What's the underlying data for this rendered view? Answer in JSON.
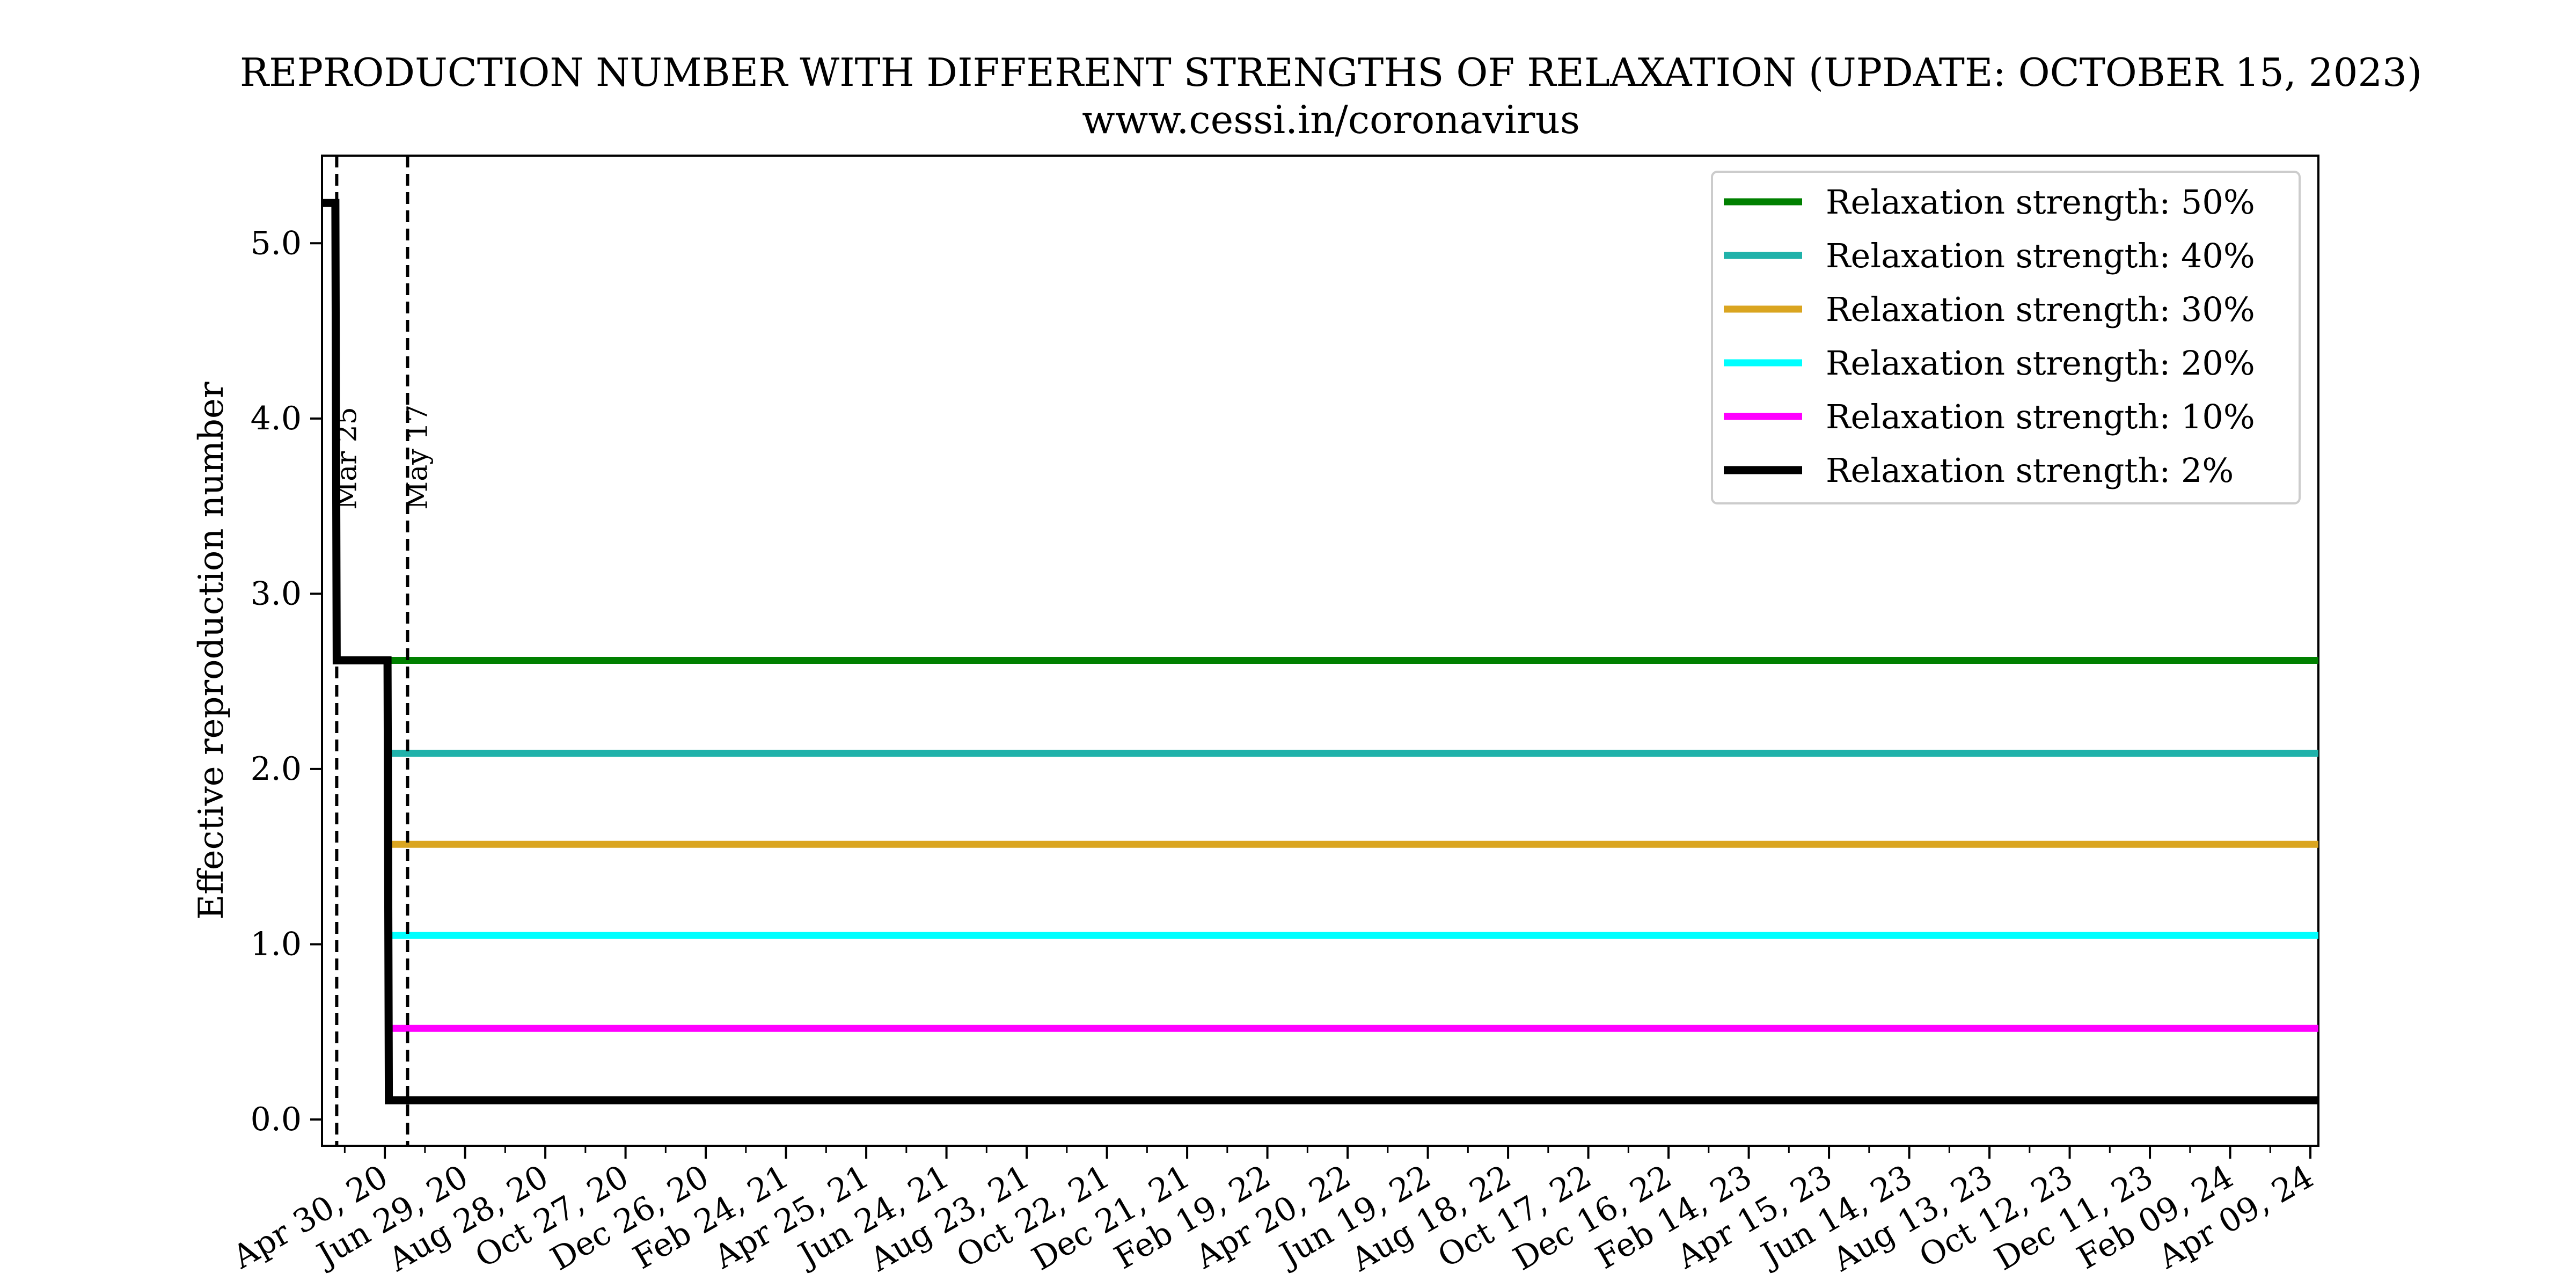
{
  "chart_data": {
    "type": "line",
    "title": "REPRODUCTION NUMBER WITH DIFFERENT STRENGTHS OF RELAXATION (UPDATE: OCTOBER 15, 2023)",
    "subtitle": "www.cessi.in/coronavirus",
    "xlabel": "",
    "ylabel": "Effective reproduction number",
    "ylim": [
      -0.15,
      5.5
    ],
    "xlim": [
      "2020-03-14",
      "2024-04-15"
    ],
    "yticks": [
      0.0,
      1.0,
      2.0,
      3.0,
      4.0,
      5.0
    ],
    "ytick_labels": [
      "0.0",
      "1.0",
      "2.0",
      "3.0",
      "4.0",
      "5.0"
    ],
    "xticks": [
      "2020-04-30",
      "2020-06-29",
      "2020-08-28",
      "2020-10-27",
      "2020-12-26",
      "2021-02-24",
      "2021-04-25",
      "2021-06-24",
      "2021-08-23",
      "2021-10-22",
      "2021-12-21",
      "2022-02-19",
      "2022-04-20",
      "2022-06-19",
      "2022-08-18",
      "2022-10-17",
      "2022-12-16",
      "2023-02-14",
      "2023-04-15",
      "2023-06-14",
      "2023-08-13",
      "2023-10-12",
      "2023-12-11",
      "2024-02-09",
      "2024-04-09"
    ],
    "xtick_labels": [
      "Apr 30, 20",
      "Jun 29, 20",
      "Aug 28, 20",
      "Oct 27, 20",
      "Dec 26, 20",
      "Feb 24, 21",
      "Apr 25, 21",
      "Jun 24, 21",
      "Aug 23, 21",
      "Oct 22, 21",
      "Dec 21, 21",
      "Feb 19, 22",
      "Apr 20, 22",
      "Jun 19, 22",
      "Aug 18, 22",
      "Oct 17, 22",
      "Dec 16, 22",
      "Feb 14, 23",
      "Apr 15, 23",
      "Jun 14, 23",
      "Aug 13, 23",
      "Oct 12, 23",
      "Dec 11, 23",
      "Feb 09, 24",
      "Apr 09, 24"
    ],
    "grid": false,
    "legend_position": "top-right",
    "vlines": [
      {
        "x": "2020-03-25",
        "label": "Mar 25"
      },
      {
        "x": "2020-05-17",
        "label": "May 17"
      }
    ],
    "series": [
      {
        "name": "Relaxation strength: 50%",
        "color": "#008000",
        "x": [
          "2020-05-04",
          "2024-04-15"
        ],
        "y": [
          2.62,
          2.62
        ]
      },
      {
        "name": "Relaxation strength: 40%",
        "color": "#20B2AA",
        "x": [
          "2020-05-04",
          "2024-04-15"
        ],
        "y": [
          2.09,
          2.09
        ]
      },
      {
        "name": "Relaxation strength: 30%",
        "color": "#DAA520",
        "x": [
          "2020-05-04",
          "2024-04-15"
        ],
        "y": [
          1.57,
          1.57
        ]
      },
      {
        "name": "Relaxation strength: 20%",
        "color": "#00FFFF",
        "x": [
          "2020-05-04",
          "2024-04-15"
        ],
        "y": [
          1.05,
          1.05
        ]
      },
      {
        "name": "Relaxation strength: 10%",
        "color": "#FF00FF",
        "x": [
          "2020-05-04",
          "2024-04-15"
        ],
        "y": [
          0.52,
          0.52
        ]
      },
      {
        "name": "Relaxation strength: 2%",
        "color": "#000000",
        "x": [
          "2020-03-14",
          "2020-03-24",
          "2020-03-25",
          "2020-05-02",
          "2020-05-03",
          "2024-04-15"
        ],
        "y": [
          5.23,
          5.23,
          2.62,
          2.62,
          0.11,
          0.11
        ]
      }
    ]
  }
}
